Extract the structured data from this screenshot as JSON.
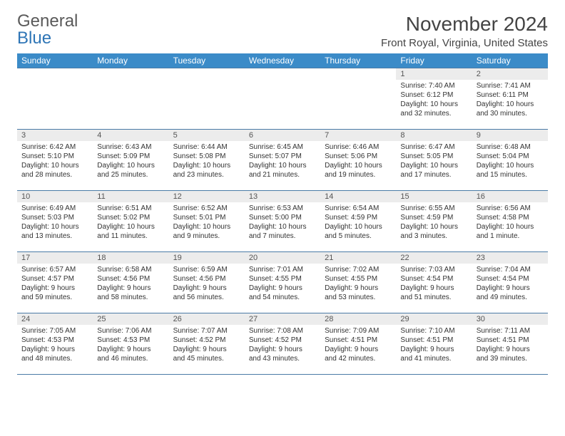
{
  "logo": {
    "line1": "General",
    "line2": "Blue"
  },
  "title": "November 2024",
  "location": "Front Royal, Virginia, United States",
  "header_bg": "#3b8bc8",
  "border_color": "#4a7ba6",
  "daynum_bg": "#ececec",
  "weekdays": [
    "Sunday",
    "Monday",
    "Tuesday",
    "Wednesday",
    "Thursday",
    "Friday",
    "Saturday"
  ],
  "weeks": [
    [
      null,
      null,
      null,
      null,
      null,
      {
        "n": "1",
        "sr": "Sunrise: 7:40 AM",
        "ss": "Sunset: 6:12 PM",
        "dl1": "Daylight: 10 hours",
        "dl2": "and 32 minutes."
      },
      {
        "n": "2",
        "sr": "Sunrise: 7:41 AM",
        "ss": "Sunset: 6:11 PM",
        "dl1": "Daylight: 10 hours",
        "dl2": "and 30 minutes."
      }
    ],
    [
      {
        "n": "3",
        "sr": "Sunrise: 6:42 AM",
        "ss": "Sunset: 5:10 PM",
        "dl1": "Daylight: 10 hours",
        "dl2": "and 28 minutes."
      },
      {
        "n": "4",
        "sr": "Sunrise: 6:43 AM",
        "ss": "Sunset: 5:09 PM",
        "dl1": "Daylight: 10 hours",
        "dl2": "and 25 minutes."
      },
      {
        "n": "5",
        "sr": "Sunrise: 6:44 AM",
        "ss": "Sunset: 5:08 PM",
        "dl1": "Daylight: 10 hours",
        "dl2": "and 23 minutes."
      },
      {
        "n": "6",
        "sr": "Sunrise: 6:45 AM",
        "ss": "Sunset: 5:07 PM",
        "dl1": "Daylight: 10 hours",
        "dl2": "and 21 minutes."
      },
      {
        "n": "7",
        "sr": "Sunrise: 6:46 AM",
        "ss": "Sunset: 5:06 PM",
        "dl1": "Daylight: 10 hours",
        "dl2": "and 19 minutes."
      },
      {
        "n": "8",
        "sr": "Sunrise: 6:47 AM",
        "ss": "Sunset: 5:05 PM",
        "dl1": "Daylight: 10 hours",
        "dl2": "and 17 minutes."
      },
      {
        "n": "9",
        "sr": "Sunrise: 6:48 AM",
        "ss": "Sunset: 5:04 PM",
        "dl1": "Daylight: 10 hours",
        "dl2": "and 15 minutes."
      }
    ],
    [
      {
        "n": "10",
        "sr": "Sunrise: 6:49 AM",
        "ss": "Sunset: 5:03 PM",
        "dl1": "Daylight: 10 hours",
        "dl2": "and 13 minutes."
      },
      {
        "n": "11",
        "sr": "Sunrise: 6:51 AM",
        "ss": "Sunset: 5:02 PM",
        "dl1": "Daylight: 10 hours",
        "dl2": "and 11 minutes."
      },
      {
        "n": "12",
        "sr": "Sunrise: 6:52 AM",
        "ss": "Sunset: 5:01 PM",
        "dl1": "Daylight: 10 hours",
        "dl2": "and 9 minutes."
      },
      {
        "n": "13",
        "sr": "Sunrise: 6:53 AM",
        "ss": "Sunset: 5:00 PM",
        "dl1": "Daylight: 10 hours",
        "dl2": "and 7 minutes."
      },
      {
        "n": "14",
        "sr": "Sunrise: 6:54 AM",
        "ss": "Sunset: 4:59 PM",
        "dl1": "Daylight: 10 hours",
        "dl2": "and 5 minutes."
      },
      {
        "n": "15",
        "sr": "Sunrise: 6:55 AM",
        "ss": "Sunset: 4:59 PM",
        "dl1": "Daylight: 10 hours",
        "dl2": "and 3 minutes."
      },
      {
        "n": "16",
        "sr": "Sunrise: 6:56 AM",
        "ss": "Sunset: 4:58 PM",
        "dl1": "Daylight: 10 hours",
        "dl2": "and 1 minute."
      }
    ],
    [
      {
        "n": "17",
        "sr": "Sunrise: 6:57 AM",
        "ss": "Sunset: 4:57 PM",
        "dl1": "Daylight: 9 hours",
        "dl2": "and 59 minutes."
      },
      {
        "n": "18",
        "sr": "Sunrise: 6:58 AM",
        "ss": "Sunset: 4:56 PM",
        "dl1": "Daylight: 9 hours",
        "dl2": "and 58 minutes."
      },
      {
        "n": "19",
        "sr": "Sunrise: 6:59 AM",
        "ss": "Sunset: 4:56 PM",
        "dl1": "Daylight: 9 hours",
        "dl2": "and 56 minutes."
      },
      {
        "n": "20",
        "sr": "Sunrise: 7:01 AM",
        "ss": "Sunset: 4:55 PM",
        "dl1": "Daylight: 9 hours",
        "dl2": "and 54 minutes."
      },
      {
        "n": "21",
        "sr": "Sunrise: 7:02 AM",
        "ss": "Sunset: 4:55 PM",
        "dl1": "Daylight: 9 hours",
        "dl2": "and 53 minutes."
      },
      {
        "n": "22",
        "sr": "Sunrise: 7:03 AM",
        "ss": "Sunset: 4:54 PM",
        "dl1": "Daylight: 9 hours",
        "dl2": "and 51 minutes."
      },
      {
        "n": "23",
        "sr": "Sunrise: 7:04 AM",
        "ss": "Sunset: 4:54 PM",
        "dl1": "Daylight: 9 hours",
        "dl2": "and 49 minutes."
      }
    ],
    [
      {
        "n": "24",
        "sr": "Sunrise: 7:05 AM",
        "ss": "Sunset: 4:53 PM",
        "dl1": "Daylight: 9 hours",
        "dl2": "and 48 minutes."
      },
      {
        "n": "25",
        "sr": "Sunrise: 7:06 AM",
        "ss": "Sunset: 4:53 PM",
        "dl1": "Daylight: 9 hours",
        "dl2": "and 46 minutes."
      },
      {
        "n": "26",
        "sr": "Sunrise: 7:07 AM",
        "ss": "Sunset: 4:52 PM",
        "dl1": "Daylight: 9 hours",
        "dl2": "and 45 minutes."
      },
      {
        "n": "27",
        "sr": "Sunrise: 7:08 AM",
        "ss": "Sunset: 4:52 PM",
        "dl1": "Daylight: 9 hours",
        "dl2": "and 43 minutes."
      },
      {
        "n": "28",
        "sr": "Sunrise: 7:09 AM",
        "ss": "Sunset: 4:51 PM",
        "dl1": "Daylight: 9 hours",
        "dl2": "and 42 minutes."
      },
      {
        "n": "29",
        "sr": "Sunrise: 7:10 AM",
        "ss": "Sunset: 4:51 PM",
        "dl1": "Daylight: 9 hours",
        "dl2": "and 41 minutes."
      },
      {
        "n": "30",
        "sr": "Sunrise: 7:11 AM",
        "ss": "Sunset: 4:51 PM",
        "dl1": "Daylight: 9 hours",
        "dl2": "and 39 minutes."
      }
    ]
  ]
}
